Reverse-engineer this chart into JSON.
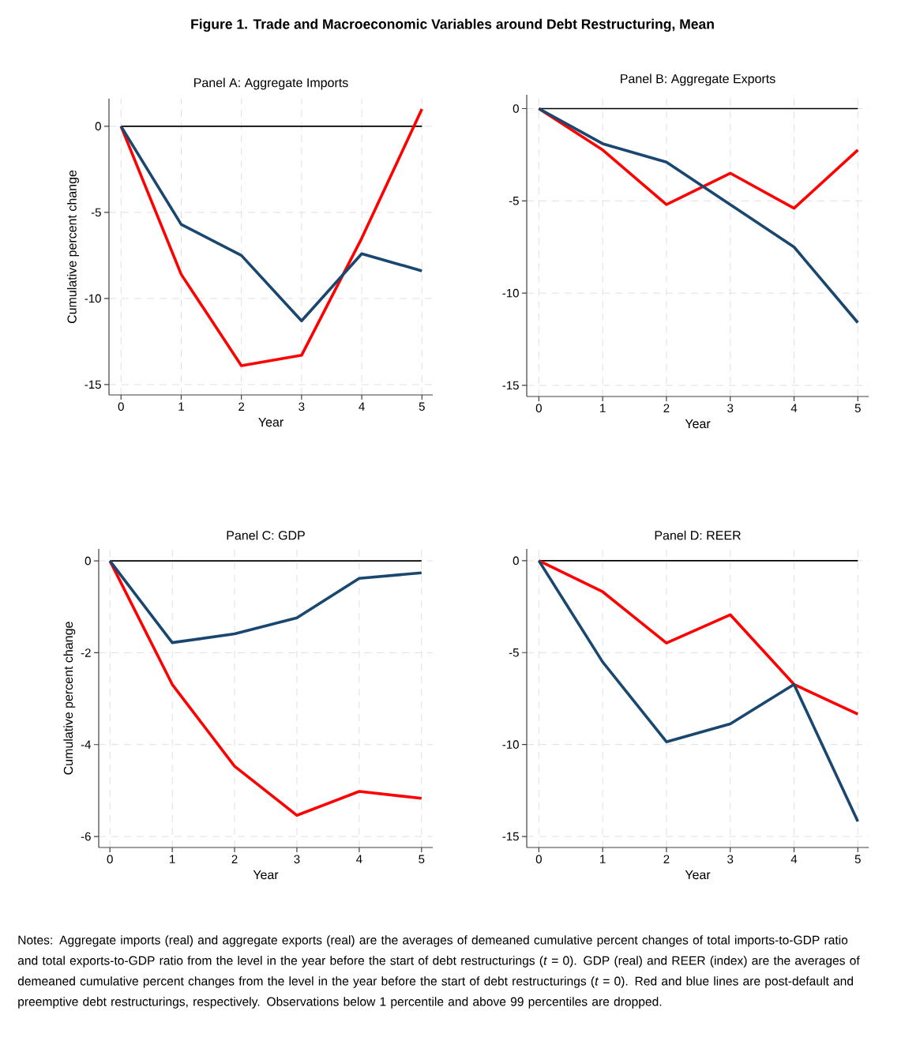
{
  "chart_data": [
    {
      "type": "line",
      "title": "Panel A: Aggregate Imports",
      "xlabel": "Year",
      "ylabel": "Cumulative percent change",
      "annotations": [
        "Figure 1. Trade and Macroeconomic Variables around Debt Restructuring, Mean"
      ],
      "x": [
        0,
        1,
        2,
        3,
        4,
        5
      ],
      "xlim": [
        -0.2,
        5.18
      ],
      "xticks": [
        0,
        1,
        2,
        3,
        4,
        5
      ],
      "ylim": [
        -15.6,
        1.6
      ],
      "yticks": [
        -15,
        -10,
        -5,
        0
      ],
      "grid": true,
      "ref_lines": [
        {
          "axis": "y",
          "value": 0,
          "color": "#000000"
        }
      ],
      "series": [
        {
          "color": "#ff0000",
          "values": [
            0,
            -8.6,
            -13.9,
            -13.3,
            -6.5,
            1.0
          ]
        },
        {
          "color": "#1a476f",
          "values": [
            0,
            -5.7,
            -7.5,
            -11.3,
            -7.4,
            -8.4
          ]
        }
      ]
    },
    {
      "type": "line",
      "title": "Panel B: Aggregate Exports",
      "xlabel": "Year",
      "x": [
        0,
        1,
        2,
        3,
        4,
        5
      ],
      "xlim": [
        -0.19,
        5.17
      ],
      "xticks": [
        0,
        1,
        2,
        3,
        4,
        5
      ],
      "ylim": [
        -15.6,
        0.75
      ],
      "yticks": [
        -15,
        -10,
        -5,
        0
      ],
      "grid": true,
      "ref_lines": [
        {
          "axis": "y",
          "value": 0,
          "color": "#000000"
        }
      ],
      "series": [
        {
          "color": "#ff0000",
          "values": [
            0,
            -2.24,
            -5.2,
            -3.5,
            -5.4,
            -2.24
          ]
        },
        {
          "color": "#1a476f",
          "values": [
            0,
            -1.9,
            -2.9,
            -5.2,
            -7.5,
            -11.6
          ]
        }
      ]
    },
    {
      "type": "line",
      "title": "Panel C: GDP",
      "xlabel": "Year",
      "ylabel": "Cumulative percent change",
      "x": [
        0,
        1,
        2,
        3,
        4,
        5
      ],
      "xlim": [
        -0.18,
        5.18
      ],
      "xticks": [
        0,
        1,
        2,
        3,
        4,
        5
      ],
      "ylim": [
        -6.24,
        0.26
      ],
      "yticks": [
        -6,
        -4,
        -2,
        0
      ],
      "grid": true,
      "ref_lines": [
        {
          "axis": "y",
          "value": 0,
          "color": "#000000"
        }
      ],
      "series": [
        {
          "color": "#ff0000",
          "values": [
            0,
            -2.69,
            -4.47,
            -5.54,
            -5.02,
            -5.17
          ]
        },
        {
          "color": "#1a476f",
          "values": [
            0,
            -1.78,
            -1.59,
            -1.24,
            -0.38,
            -0.26
          ]
        }
      ]
    },
    {
      "type": "line",
      "title": "Panel D: REER",
      "xlabel": "Year",
      "annotations": [
        "Notes: Aggregate imports (real) and aggregate exports (real) are the averages of demeaned cumulative percent changes of total imports-to-GDP ratio and total exports-to-GDP ratio from the level in the year before the start of debt restructurings (*t* = 0). GDP (real) and REER (index) are the averages of demeaned cumulative percent changes from the level in the year before the start of debt restructurings (*t* = 0). Red and blue lines are post-default and preemptive debt restructurings, respectively. Observations below 1 percentile and above 99 percentiles are dropped."
      ],
      "x": [
        0,
        1,
        2,
        3,
        4,
        5
      ],
      "xlim": [
        -0.19,
        5.17
      ],
      "xticks": [
        0,
        1,
        2,
        3,
        4,
        5
      ],
      "ylim": [
        -15.6,
        0.64
      ],
      "yticks": [
        -15,
        -10,
        -5,
        0
      ],
      "grid": true,
      "ref_lines": [
        {
          "axis": "y",
          "value": 0,
          "color": "#000000"
        }
      ],
      "series": [
        {
          "color": "#ff0000",
          "values": [
            0,
            -1.69,
            -4.48,
            -2.94,
            -6.73,
            -8.34
          ]
        },
        {
          "color": "#1a476f",
          "values": [
            0,
            -5.51,
            -9.85,
            -8.88,
            -6.73,
            -14.18
          ]
        }
      ]
    }
  ]
}
